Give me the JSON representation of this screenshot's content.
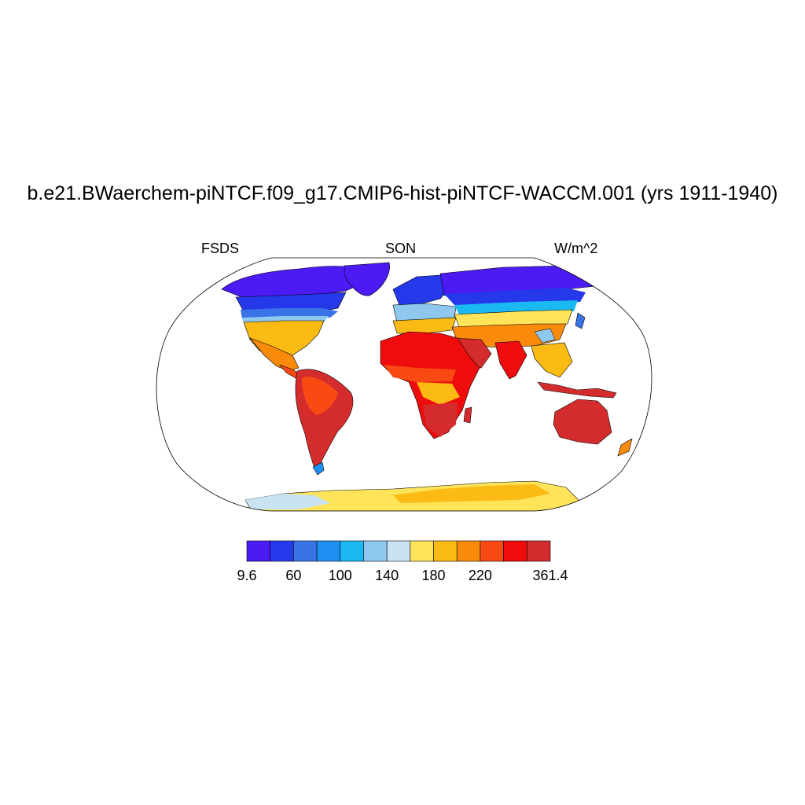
{
  "title": "b.e21.BWaerchem-piNTCF.f09_g17.CMIP6-hist-piNTCF-WACCM.001 (yrs 1911-1940)",
  "left_label": "FSDS",
  "center_label": "SON",
  "right_label": "W/m^2",
  "colorbar": {
    "colors": [
      "#4c1af2",
      "#2538ea",
      "#3a73e6",
      "#1e90f2",
      "#1ab9f2",
      "#8ec8ee",
      "#c8e4f4",
      "#ffe45a",
      "#fbba14",
      "#f98a0c",
      "#f94a14",
      "#ee0c0c",
      "#d42c2c"
    ],
    "tick_labels": [
      "9.6",
      "60",
      "100",
      "140",
      "180",
      "220",
      "361.4"
    ],
    "tick_boundaries": [
      0,
      2,
      4,
      6,
      8,
      10,
      13
    ]
  },
  "map": {
    "projection": "Robinson",
    "ocean_color": "#ffffff",
    "coastline_color": "#000000"
  }
}
